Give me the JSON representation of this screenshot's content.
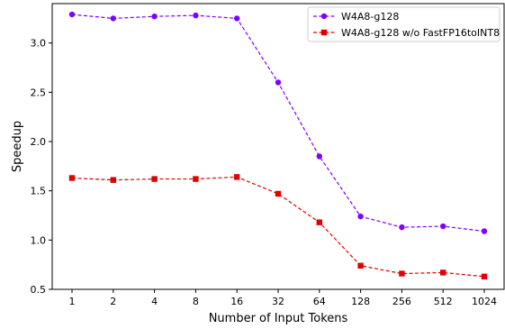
{
  "chart_data": {
    "type": "line",
    "categories": [
      "1",
      "2",
      "4",
      "8",
      "16",
      "32",
      "64",
      "128",
      "256",
      "512",
      "1024"
    ],
    "xlabel": "Number of Input Tokens",
    "ylabel": "Speedup",
    "ylim": [
      0.5,
      3.4
    ],
    "yticks": [
      0.5,
      1.0,
      1.5,
      2.0,
      2.5,
      3.0
    ],
    "grid": false,
    "legend_position": "top-right",
    "series": [
      {
        "name": "W4A8-g128",
        "color": "#7f00ff",
        "marker": "circle",
        "linestyle": "dashed",
        "values": [
          3.29,
          3.25,
          3.27,
          3.28,
          3.25,
          2.6,
          1.85,
          1.24,
          1.13,
          1.14,
          1.09
        ]
      },
      {
        "name": "W4A8-g128 w/o FastFP16toINT8",
        "color": "#e00000",
        "marker": "square",
        "linestyle": "dashed",
        "values": [
          1.63,
          1.61,
          1.62,
          1.62,
          1.64,
          1.47,
          1.18,
          0.74,
          0.66,
          0.67,
          0.63
        ]
      }
    ]
  }
}
